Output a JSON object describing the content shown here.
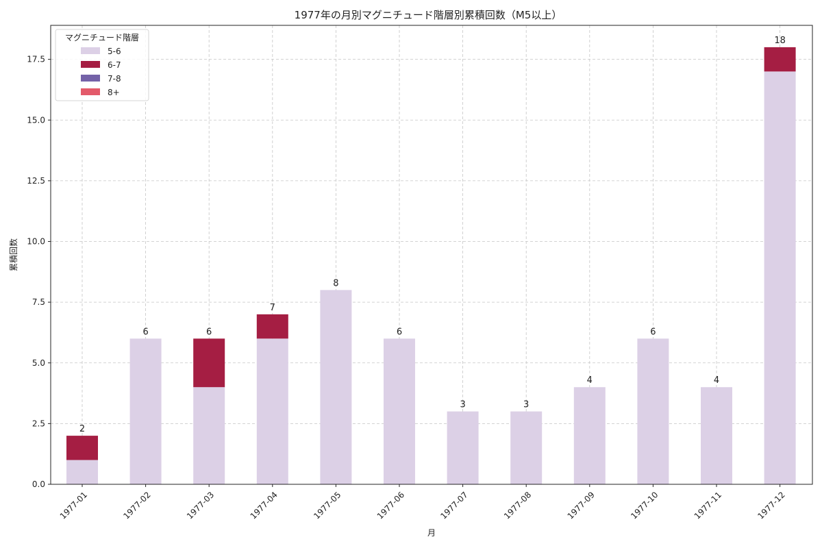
{
  "chart_data": {
    "type": "bar",
    "stacked": true,
    "title": "1977年の月別マグニチュード階層別累積回数（M5以上）",
    "xlabel": "月",
    "ylabel": "累積回数",
    "categories": [
      "1977-01",
      "1977-02",
      "1977-03",
      "1977-04",
      "1977-05",
      "1977-06",
      "1977-07",
      "1977-08",
      "1977-09",
      "1977-10",
      "1977-11",
      "1977-12"
    ],
    "series": [
      {
        "name": "5-6",
        "color": "#dcd0e6",
        "values": [
          1,
          6,
          4,
          6,
          8,
          6,
          3,
          3,
          4,
          6,
          4,
          17
        ]
      },
      {
        "name": "6-7",
        "color": "#a51e43",
        "values": [
          1,
          0,
          2,
          1,
          0,
          0,
          0,
          0,
          0,
          0,
          0,
          1
        ]
      },
      {
        "name": "7-8",
        "color": "#7462a8",
        "values": [
          0,
          0,
          0,
          0,
          0,
          0,
          0,
          0,
          0,
          0,
          0,
          0
        ]
      },
      {
        "name": "8+",
        "color": "#e35a6a",
        "values": [
          0,
          0,
          0,
          0,
          0,
          0,
          0,
          0,
          0,
          0,
          0,
          0
        ]
      }
    ],
    "totals": [
      2,
      6,
      6,
      7,
      8,
      6,
      3,
      3,
      4,
      6,
      4,
      18
    ],
    "ylim": [
      0,
      18.9
    ],
    "yticks": [
      "0.0",
      "2.5",
      "5.0",
      "7.5",
      "10.0",
      "12.5",
      "15.0",
      "17.5"
    ],
    "grid": true,
    "legend": {
      "title": "マグニチュード階層",
      "placement": "top-left"
    }
  }
}
